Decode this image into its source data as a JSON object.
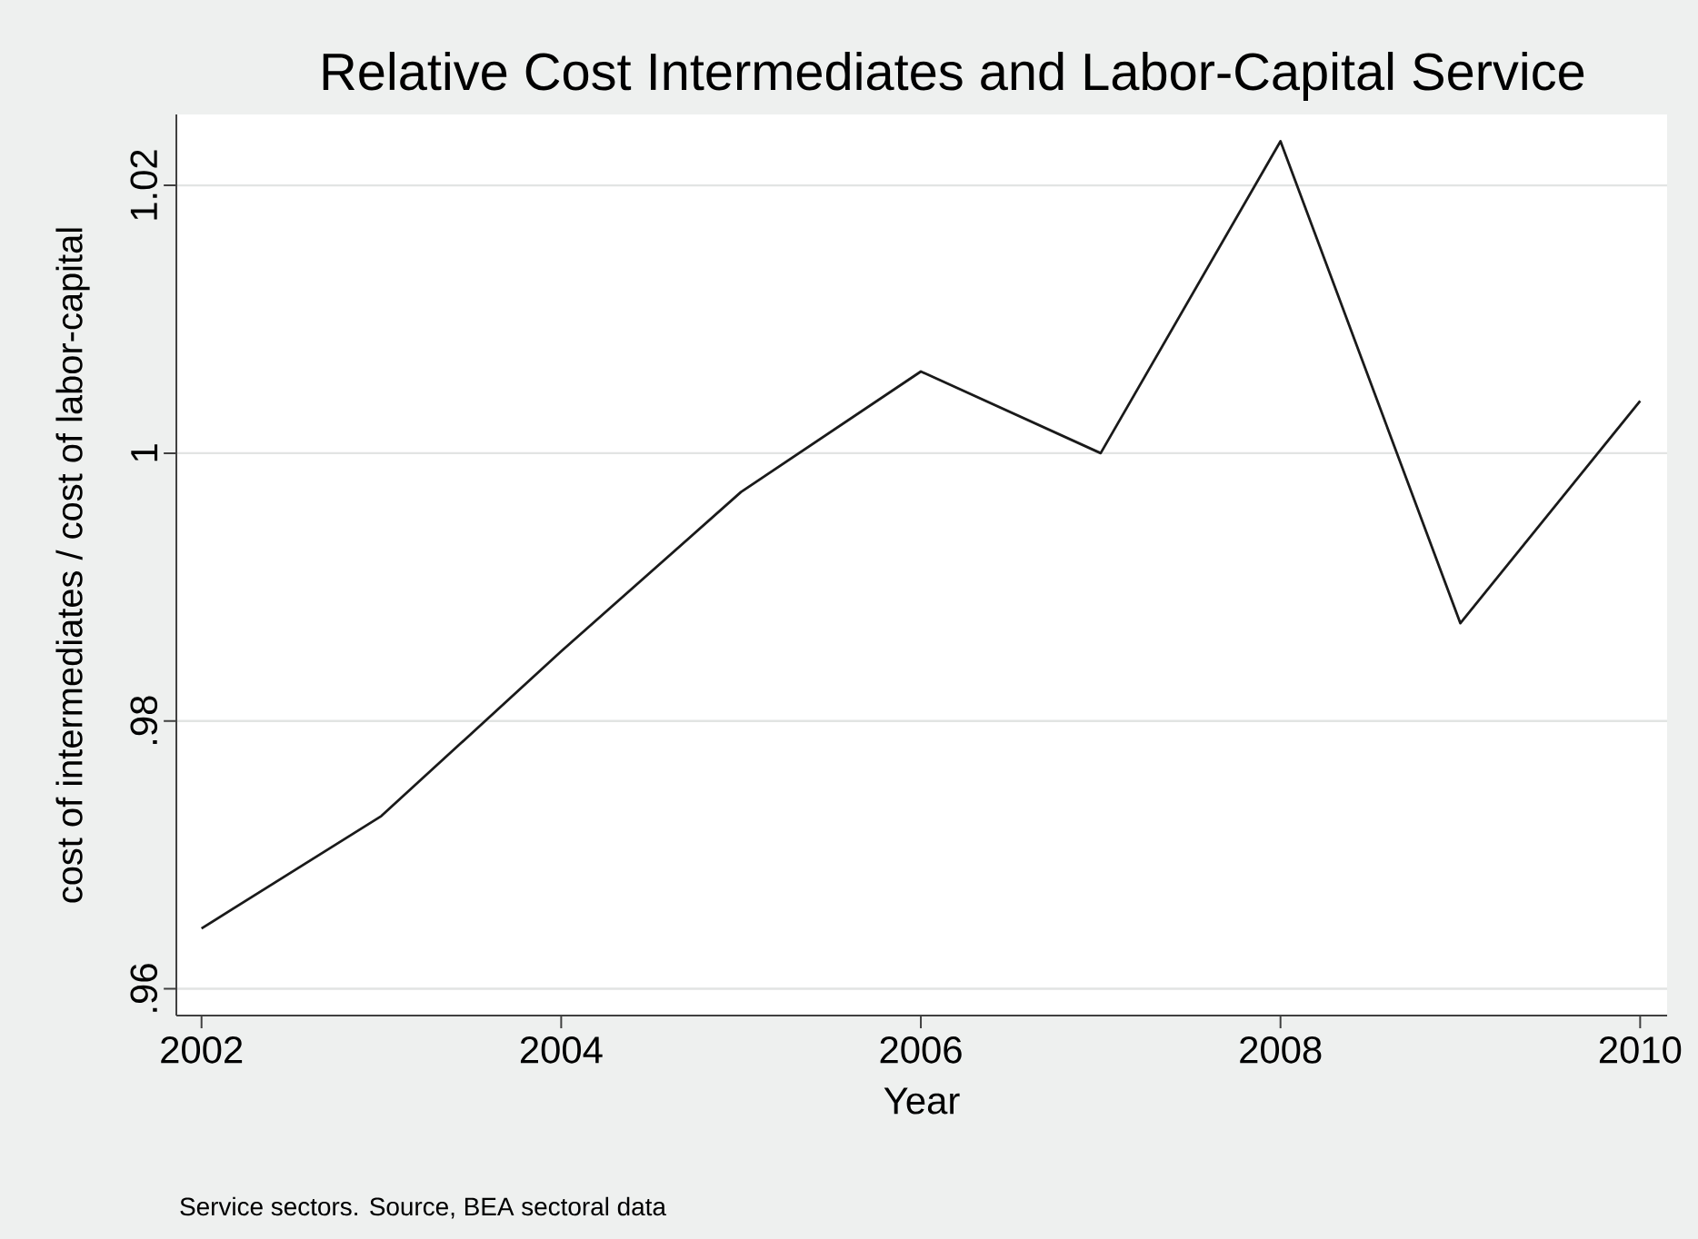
{
  "chart_data": {
    "type": "line",
    "title": "Relative Cost Intermediates and Labor-Capital Service",
    "xlabel": "Year",
    "ylabel": "cost of intermediates / cost of labor-capital",
    "x": [
      2002,
      2003,
      2004,
      2005,
      2006,
      2007,
      2008,
      2009,
      2010
    ],
    "series": [
      {
        "color": "#1a1a1a",
        "values": [
          0.9645,
          0.9729,
          0.9852,
          0.9971,
          1.0061,
          1.0,
          1.0233,
          0.9873,
          1.0039
        ]
      }
    ],
    "xlim": [
      2001.86,
      2010.15
    ],
    "xticks": [
      2002,
      2004,
      2006,
      2008,
      2010
    ],
    "ylim": [
      0.958,
      1.0253
    ],
    "yticks": [
      {
        "value": 0.96,
        "label": ".96"
      },
      {
        "value": 0.98,
        "label": ".98"
      },
      1,
      1.02
    ],
    "grid": "y",
    "annotations": [
      "Service sectors. Source, BEA sectoral data"
    ]
  }
}
